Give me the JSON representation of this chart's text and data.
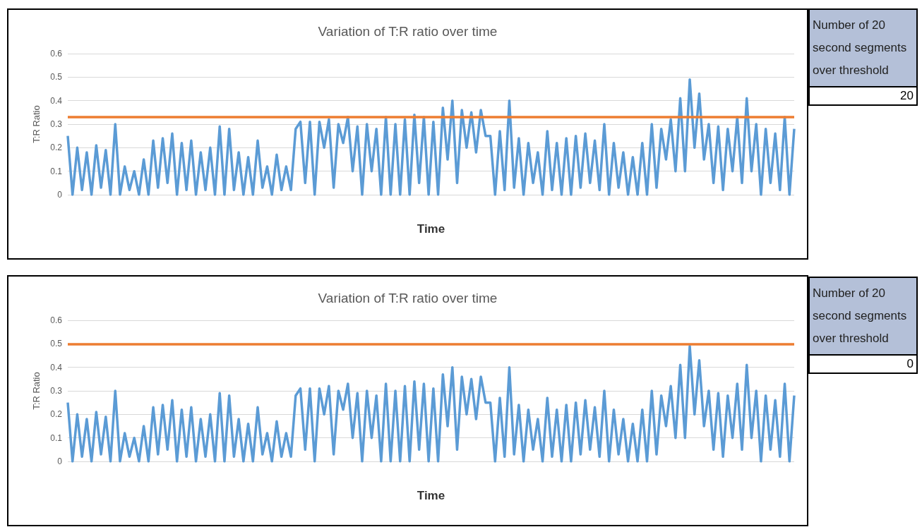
{
  "chart_data": [
    {
      "type": "line",
      "title": "Variation of T:R ratio over time",
      "xlabel": "Time",
      "ylabel": "T:R Ratio",
      "ylim": [
        0,
        0.6
      ],
      "yticks": [
        0,
        0.1,
        0.2,
        0.3,
        0.4,
        0.5,
        0.6
      ],
      "grid": "y",
      "marker": "none",
      "line_style": "solid",
      "categories": [
        null,
        null,
        null,
        null,
        null,
        null,
        null,
        null,
        null,
        null,
        null,
        null,
        null,
        null,
        null,
        null,
        null,
        null,
        null,
        null,
        null,
        null,
        null,
        null,
        null,
        null,
        null,
        null,
        null,
        null,
        null,
        null,
        null,
        null,
        null,
        null,
        null,
        null,
        null,
        null,
        null,
        null,
        null,
        null,
        null,
        null,
        null,
        null,
        null,
        null,
        null,
        null,
        null,
        null,
        null,
        null,
        null,
        null,
        null,
        null,
        null,
        null,
        null,
        null,
        null,
        null,
        null,
        null,
        null,
        null,
        null,
        null,
        null,
        null,
        null,
        null,
        null,
        null,
        null,
        null,
        null,
        null,
        null,
        null,
        null,
        null,
        null,
        null,
        null,
        null,
        null,
        null,
        null,
        null,
        null,
        null,
        null,
        null,
        null,
        null,
        null,
        null,
        null,
        null,
        null,
        null,
        null,
        null,
        null,
        null,
        null,
        null,
        null,
        null,
        null,
        null,
        null,
        null,
        null,
        null,
        null,
        null,
        null,
        null,
        null,
        null,
        null,
        null,
        null,
        null,
        null,
        null,
        null,
        null,
        null,
        null,
        null,
        null,
        null,
        null,
        null,
        null,
        null,
        null,
        null,
        null,
        null,
        null,
        null,
        null,
        null,
        null,
        null,
        null
      ],
      "series": [
        {
          "color": "#5b9bd5",
          "values": [
            0.25,
            0,
            0.2,
            0.02,
            0.18,
            0,
            0.21,
            0.03,
            0.19,
            0,
            0.3,
            0,
            0.12,
            0.02,
            0.1,
            0,
            0.15,
            0,
            0.23,
            0.03,
            0.24,
            0.05,
            0.26,
            0,
            0.22,
            0.02,
            0.23,
            0,
            0.18,
            0.02,
            0.2,
            0,
            0.29,
            0,
            0.28,
            0.02,
            0.18,
            0,
            0.16,
            0,
            0.23,
            0.03,
            0.12,
            0,
            0.17,
            0.02,
            0.12,
            0.02,
            0.28,
            0.31,
            0.05,
            0.31,
            0,
            0.31,
            0.2,
            0.32,
            0.03,
            0.3,
            0.22,
            0.33,
            0.1,
            0.29,
            0,
            0.3,
            0.1,
            0.28,
            0,
            0.33,
            0,
            0.3,
            0,
            0.32,
            0,
            0.34,
            0.05,
            0.33,
            0,
            0.31,
            0,
            0.37,
            0.15,
            0.4,
            0.05,
            0.36,
            0.2,
            0.35,
            0.18,
            0.36,
            0.25,
            0.25,
            0,
            0.27,
            0.02,
            0.4,
            0.03,
            0.24,
            0,
            0.22,
            0.05,
            0.18,
            0,
            0.27,
            0.02,
            0.22,
            0,
            0.24,
            0,
            0.25,
            0.03,
            0.26,
            0.05,
            0.23,
            0.02,
            0.3,
            0,
            0.22,
            0.03,
            0.18,
            0,
            0.16,
            0,
            0.22,
            0,
            0.3,
            0.03,
            0.28,
            0.15,
            0.32,
            0.1,
            0.41,
            0.1,
            0.49,
            0.2,
            0.43,
            0.15,
            0.3,
            0.05,
            0.29,
            0.02,
            0.28,
            0.1,
            0.33,
            0.05,
            0.41,
            0.1,
            0.3,
            0,
            0.28,
            0.05,
            0.26,
            0.02,
            0.33,
            0,
            0.28
          ]
        }
      ],
      "ref_lines": [
        {
          "axis": "y",
          "value": 0.333,
          "color": "#ed7d31",
          "line_style": "solid"
        }
      ]
    },
    {
      "type": "other",
      "title": "Number of 20 second segments over threshold",
      "annotations": [
        "20"
      ]
    },
    {
      "type": "line",
      "title": "Variation of T:R ratio over time",
      "xlabel": "Time",
      "ylabel": "T:R Ratio",
      "ylim": [
        0,
        0.6
      ],
      "yticks": [
        0,
        0.1,
        0.2,
        0.3,
        0.4,
        0.5,
        0.6
      ],
      "grid": "y",
      "marker": "none",
      "line_style": "solid",
      "categories": [
        null,
        null,
        null,
        null,
        null,
        null,
        null,
        null,
        null,
        null,
        null,
        null,
        null,
        null,
        null,
        null,
        null,
        null,
        null,
        null,
        null,
        null,
        null,
        null,
        null,
        null,
        null,
        null,
        null,
        null,
        null,
        null,
        null,
        null,
        null,
        null,
        null,
        null,
        null,
        null,
        null,
        null,
        null,
        null,
        null,
        null,
        null,
        null,
        null,
        null,
        null,
        null,
        null,
        null,
        null,
        null,
        null,
        null,
        null,
        null,
        null,
        null,
        null,
        null,
        null,
        null,
        null,
        null,
        null,
        null,
        null,
        null,
        null,
        null,
        null,
        null,
        null,
        null,
        null,
        null,
        null,
        null,
        null,
        null,
        null,
        null,
        null,
        null,
        null,
        null,
        null,
        null,
        null,
        null,
        null,
        null,
        null,
        null,
        null,
        null,
        null,
        null,
        null,
        null,
        null,
        null,
        null,
        null,
        null,
        null,
        null,
        null,
        null,
        null,
        null,
        null,
        null,
        null,
        null,
        null,
        null,
        null,
        null,
        null,
        null,
        null,
        null,
        null,
        null,
        null,
        null,
        null,
        null,
        null,
        null,
        null,
        null,
        null,
        null,
        null,
        null,
        null,
        null,
        null,
        null,
        null,
        null,
        null,
        null,
        null,
        null,
        null,
        null,
        null
      ],
      "series": [
        {
          "color": "#5b9bd5",
          "values": [
            0.25,
            0,
            0.2,
            0.02,
            0.18,
            0,
            0.21,
            0.03,
            0.19,
            0,
            0.3,
            0,
            0.12,
            0.02,
            0.1,
            0,
            0.15,
            0,
            0.23,
            0.03,
            0.24,
            0.05,
            0.26,
            0,
            0.22,
            0.02,
            0.23,
            0,
            0.18,
            0.02,
            0.2,
            0,
            0.29,
            0,
            0.28,
            0.02,
            0.18,
            0,
            0.16,
            0,
            0.23,
            0.03,
            0.12,
            0,
            0.17,
            0.02,
            0.12,
            0.02,
            0.28,
            0.31,
            0.05,
            0.31,
            0,
            0.31,
            0.2,
            0.32,
            0.03,
            0.3,
            0.22,
            0.33,
            0.1,
            0.29,
            0,
            0.3,
            0.1,
            0.28,
            0,
            0.33,
            0,
            0.3,
            0,
            0.32,
            0,
            0.34,
            0.05,
            0.33,
            0,
            0.31,
            0,
            0.37,
            0.15,
            0.4,
            0.05,
            0.36,
            0.2,
            0.35,
            0.18,
            0.36,
            0.25,
            0.25,
            0,
            0.27,
            0.02,
            0.4,
            0.03,
            0.24,
            0,
            0.22,
            0.05,
            0.18,
            0,
            0.27,
            0.02,
            0.22,
            0,
            0.24,
            0,
            0.25,
            0.03,
            0.26,
            0.05,
            0.23,
            0.02,
            0.3,
            0,
            0.22,
            0.03,
            0.18,
            0,
            0.16,
            0,
            0.22,
            0,
            0.3,
            0.03,
            0.28,
            0.15,
            0.32,
            0.1,
            0.41,
            0.1,
            0.49,
            0.2,
            0.43,
            0.15,
            0.3,
            0.05,
            0.29,
            0.02,
            0.28,
            0.1,
            0.33,
            0.05,
            0.41,
            0.1,
            0.3,
            0,
            0.28,
            0.05,
            0.26,
            0.02,
            0.33,
            0,
            0.28
          ]
        }
      ],
      "ref_lines": [
        {
          "axis": "y",
          "value": 0.5,
          "color": "#ed7d31",
          "line_style": "solid"
        }
      ]
    },
    {
      "type": "other",
      "title": "Number of 20 second segments over threshold",
      "annotations": [
        "0"
      ]
    }
  ]
}
